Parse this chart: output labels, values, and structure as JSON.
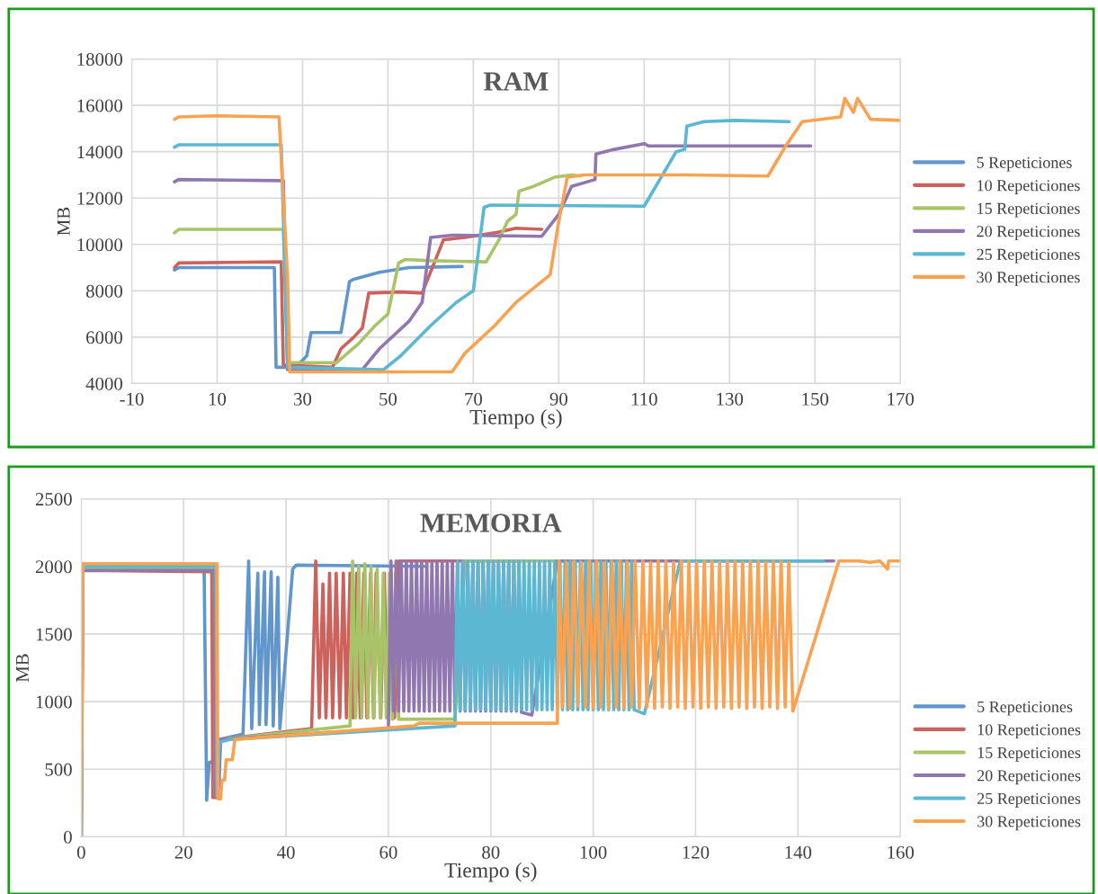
{
  "chart_data": [
    {
      "type": "line",
      "title": "RAM",
      "xlabel": "Tiempo (s)",
      "ylabel": "MB",
      "xlim": [
        -10,
        170
      ],
      "xticks": [
        -10,
        10,
        30,
        50,
        70,
        90,
        110,
        130,
        150,
        170
      ],
      "ylim": [
        4000,
        18000
      ],
      "yticks": [
        4000,
        6000,
        8000,
        10000,
        12000,
        14000,
        16000,
        18000
      ],
      "grid": true,
      "legend": "right",
      "marker": "none",
      "line_style": "solid",
      "series": [
        {
          "name": "5 Repeticiones",
          "color": "#6096cc",
          "x": [
            0,
            1,
            23.4,
            23.8,
            28,
            30,
            31,
            32,
            39,
            41,
            42,
            48,
            55,
            67.4
          ],
          "values": [
            8900,
            9000,
            9000,
            4700,
            4700,
            5000,
            5200,
            6200,
            6200,
            8400,
            8500,
            8800,
            9000,
            9050
          ]
        },
        {
          "name": "10 Repeticiones",
          "color": "#cd625c",
          "x": [
            0,
            1,
            25,
            25.5,
            37,
            39,
            42,
            44,
            45.5,
            53,
            58,
            63,
            68,
            75,
            80,
            86
          ],
          "values": [
            9000,
            9200,
            9250,
            4800,
            4700,
            5500,
            6000,
            6400,
            7900,
            7950,
            7900,
            10200,
            10300,
            10500,
            10700,
            10650
          ]
        },
        {
          "name": "15 Repeticiones",
          "color": "#a9c468",
          "x": [
            0,
            1,
            25.5,
            26.5,
            38,
            43,
            47,
            50,
            52.5,
            54,
            60,
            73,
            76,
            78,
            80,
            80.7,
            84,
            89,
            93,
            95
          ],
          "values": [
            10500,
            10650,
            10650,
            4900,
            4900,
            5700,
            6500,
            7000,
            9200,
            9350,
            9300,
            9250,
            10200,
            11000,
            11300,
            12300,
            12500,
            12900,
            13000,
            12950
          ]
        },
        {
          "name": "20 Repeticiones",
          "color": "#9077b0",
          "x": [
            0,
            1,
            25.5,
            26.5,
            44,
            48,
            55,
            58,
            60,
            65,
            86,
            90,
            93,
            98.5,
            98.7,
            103,
            110,
            111,
            149
          ],
          "values": [
            12700,
            12800,
            12750,
            4600,
            4600,
            5500,
            6700,
            7500,
            10300,
            10400,
            10350,
            11300,
            12500,
            12800,
            13900,
            14100,
            14350,
            14250,
            14250
          ]
        },
        {
          "name": "25 Repeticiones",
          "color": "#5cb8d2",
          "x": [
            0,
            1,
            25,
            26.5,
            49,
            53,
            60,
            66,
            70,
            72.5,
            74,
            110,
            117.5,
            119.5,
            120,
            124,
            131,
            144
          ],
          "values": [
            14200,
            14300,
            14300,
            4700,
            4600,
            5200,
            6500,
            7500,
            8000,
            11600,
            11700,
            11650,
            14000,
            14100,
            15100,
            15300,
            15350,
            15300
          ]
        },
        {
          "name": "30 Repeticiones",
          "color": "#f9a352",
          "x": [
            0,
            1,
            10,
            24.5,
            26.5,
            27,
            65,
            68,
            75,
            80,
            88,
            90,
            92,
            96,
            120,
            139,
            143,
            147,
            156,
            157,
            159,
            160,
            163,
            170
          ],
          "values": [
            15400,
            15500,
            15550,
            15500,
            8500,
            4500,
            4500,
            5300,
            6500,
            7500,
            8700,
            11000,
            12900,
            13000,
            13000,
            12950,
            14200,
            15300,
            15500,
            16300,
            15700,
            16300,
            15400,
            15350
          ]
        }
      ]
    },
    {
      "type": "line",
      "title": "MEMORIA",
      "xlabel": "Tiempo (s)",
      "ylabel": "MB",
      "xlim": [
        0,
        160
      ],
      "xticks": [
        0,
        20,
        40,
        60,
        80,
        100,
        120,
        140,
        160
      ],
      "ylim": [
        0,
        2500
      ],
      "yticks": [
        0,
        500,
        1000,
        1500,
        2000,
        2500
      ],
      "grid": true,
      "legend": "bottom right",
      "marker": "none",
      "line_style": "solid",
      "series": [
        {
          "name": "5 Repeticiones",
          "color": "#6096cc",
          "x": [
            0,
            0.3,
            24,
            24.5,
            25,
            26,
            27,
            31.6,
            32.7,
            33.3,
            34.5,
            34.8,
            35.8,
            36.1,
            37.1,
            37.5,
            38.4,
            38.8,
            41.3,
            42,
            67
          ],
          "values": [
            1980,
            1990,
            1980,
            270,
            550,
            560,
            720,
            760,
            2040,
            800,
            1950,
            830,
            1960,
            830,
            1960,
            820,
            1920,
            800,
            1980,
            2010,
            2000
          ]
        },
        {
          "name": "10 Repeticiones",
          "color": "#cd625c",
          "x": [
            0,
            0.3,
            25.5,
            25.7,
            26.5,
            27,
            45,
            45.8,
            46.5,
            47.2,
            47.8,
            48.5,
            49.1,
            49.8,
            50.5,
            51.2,
            51.8,
            52.5,
            53.1,
            53.8,
            54.5,
            55.2,
            55.8,
            56.5,
            57.1,
            57.6,
            58.5,
            59.2,
            59.8,
            60.5,
            61.2,
            62,
            86
          ],
          "values": [
            0,
            1970,
            1960,
            290,
            290,
            720,
            800,
            2040,
            880,
            1870,
            880,
            1950,
            880,
            1950,
            880,
            1950,
            880,
            1950,
            880,
            1950,
            880,
            1950,
            880,
            1950,
            880,
            1950,
            880,
            1950,
            880,
            1950,
            880,
            2040,
            2040
          ]
        },
        {
          "name": "15 Repeticiones",
          "color": "#a9c468",
          "x": [
            0,
            0.3,
            26,
            26.2,
            26.8,
            27.2,
            52.5,
            53,
            53.6,
            54.2,
            54.8,
            55.4,
            56,
            56.6,
            57.2,
            57.8,
            58.4,
            59,
            59.6,
            60.2,
            60.8,
            61.4,
            62,
            73,
            75,
            95
          ],
          "values": [
            0,
            1980,
            1980,
            300,
            300,
            720,
            820,
            2040,
            880,
            2000,
            880,
            2020,
            880,
            2000,
            880,
            1980,
            880,
            1950,
            880,
            1950,
            870,
            1950,
            870,
            870,
            2040,
            2040
          ]
        },
        {
          "name": "20 Repeticiones",
          "color": "#9077b0",
          "x": [
            0,
            0.3,
            26,
            26.2,
            26.8,
            27.2,
            60,
            60.5,
            61,
            61.5,
            62,
            62.5,
            63,
            63.5,
            64,
            64.5,
            65,
            65.5,
            66,
            66.5,
            67,
            67.5,
            68,
            68.5,
            69,
            69.5,
            70,
            70.5,
            71,
            71.5,
            72,
            72.5,
            73,
            73.5,
            74,
            74.5,
            75,
            75.5,
            76,
            76.5,
            77,
            77.5,
            78,
            78.5,
            79,
            79.5,
            80,
            80.5,
            81,
            81.5,
            82,
            82.5,
            83,
            83.5,
            84,
            84.5,
            85,
            85.5,
            86,
            88,
            93,
            147
          ],
          "values": [
            0,
            1970,
            1970,
            300,
            300,
            720,
            800,
            2040,
            930,
            2040,
            930,
            2040,
            930,
            2040,
            930,
            2040,
            930,
            2040,
            930,
            2040,
            930,
            2040,
            930,
            2040,
            930,
            2040,
            930,
            2040,
            930,
            2040,
            930,
            2040,
            930,
            2040,
            930,
            2040,
            930,
            2040,
            930,
            2040,
            930,
            2040,
            930,
            2040,
            930,
            2040,
            930,
            2040,
            930,
            2040,
            930,
            2040,
            930,
            2040,
            930,
            2040,
            930,
            2040,
            920,
            900,
            2040,
            2040
          ]
        },
        {
          "name": "25 Repeticiones",
          "color": "#5cb8d2",
          "x": [
            0,
            0.3,
            26.3,
            26.5,
            27,
            29,
            73,
            73.5,
            74,
            74.5,
            75,
            75.5,
            76,
            76.5,
            77,
            77.5,
            78,
            78.5,
            79,
            79.5,
            80,
            80.5,
            81,
            81.5,
            82,
            82.5,
            83,
            83.5,
            84,
            84.5,
            85,
            85.5,
            86,
            86.5,
            87,
            87.5,
            88,
            88.5,
            89,
            89.5,
            90,
            90.5,
            91,
            91.5,
            92,
            92.5,
            93,
            93.5,
            94,
            94.5,
            95,
            95.5,
            96,
            96.5,
            97,
            97.5,
            98,
            98.5,
            99,
            99.5,
            100,
            100.5,
            101,
            101.5,
            102,
            102.5,
            103,
            103.5,
            104,
            104.5,
            105,
            105.5,
            106,
            106.5,
            107,
            107.5,
            108,
            110,
            117,
            145
          ],
          "values": [
            0,
            2000,
            2000,
            300,
            700,
            720,
            820,
            2040,
            940,
            2040,
            940,
            2040,
            940,
            2040,
            940,
            2040,
            940,
            2040,
            940,
            2040,
            940,
            2040,
            940,
            2040,
            940,
            2040,
            940,
            2040,
            940,
            2040,
            940,
            2040,
            940,
            2040,
            940,
            2040,
            940,
            2040,
            940,
            2040,
            940,
            2040,
            940,
            2040,
            940,
            2040,
            940,
            2040,
            940,
            2040,
            940,
            2040,
            940,
            2040,
            940,
            2040,
            940,
            2040,
            940,
            2040,
            940,
            2040,
            940,
            2040,
            940,
            2040,
            940,
            2040,
            940,
            2040,
            940,
            2040,
            940,
            2040,
            940,
            2040,
            940,
            910,
            2040,
            2040
          ]
        },
        {
          "name": "30 Repeticiones",
          "color": "#f9a352",
          "x": [
            0,
            0.3,
            26.5,
            26.7,
            27.2,
            27.5,
            28,
            28.3,
            29.5,
            30,
            65,
            66,
            93,
            93.3,
            94,
            94.8,
            95.5,
            96.2,
            97,
            97.7,
            98.5,
            99.2,
            100,
            100.7,
            101.5,
            102.2,
            103,
            103.7,
            104.5,
            105.2,
            106,
            106.7,
            107.5,
            108.2,
            109,
            109.7,
            110.5,
            111.2,
            112,
            112.7,
            113.5,
            114.2,
            115,
            115.7,
            116.5,
            117.2,
            118,
            118.7,
            119.5,
            120.2,
            121,
            121.7,
            122.5,
            123.2,
            124,
            124.7,
            125.5,
            126.2,
            127,
            127.7,
            128.5,
            129.2,
            130,
            130.7,
            131.5,
            132.2,
            133,
            133.7,
            134.5,
            135.2,
            136,
            136.7,
            137.5,
            138.2,
            139,
            148,
            152,
            154,
            156,
            157.5,
            157.7,
            160
          ],
          "values": [
            0,
            2020,
            2020,
            280,
            280,
            420,
            420,
            570,
            570,
            720,
            820,
            840,
            840,
            2040,
            960,
            2030,
            950,
            2040,
            970,
            2030,
            960,
            2040,
            950,
            2040,
            960,
            2030,
            950,
            2040,
            960,
            2040,
            950,
            2030,
            960,
            2040,
            950,
            2040,
            960,
            2030,
            950,
            2040,
            960,
            2040,
            950,
            2030,
            960,
            2040,
            950,
            2040,
            960,
            2030,
            950,
            2040,
            960,
            2040,
            950,
            2030,
            960,
            2040,
            950,
            2040,
            960,
            2030,
            950,
            2040,
            960,
            2040,
            950,
            2030,
            960,
            2040,
            950,
            2040,
            960,
            2030,
            930,
            2040,
            2040,
            2030,
            2040,
            1980,
            2040,
            2040
          ]
        }
      ]
    }
  ]
}
